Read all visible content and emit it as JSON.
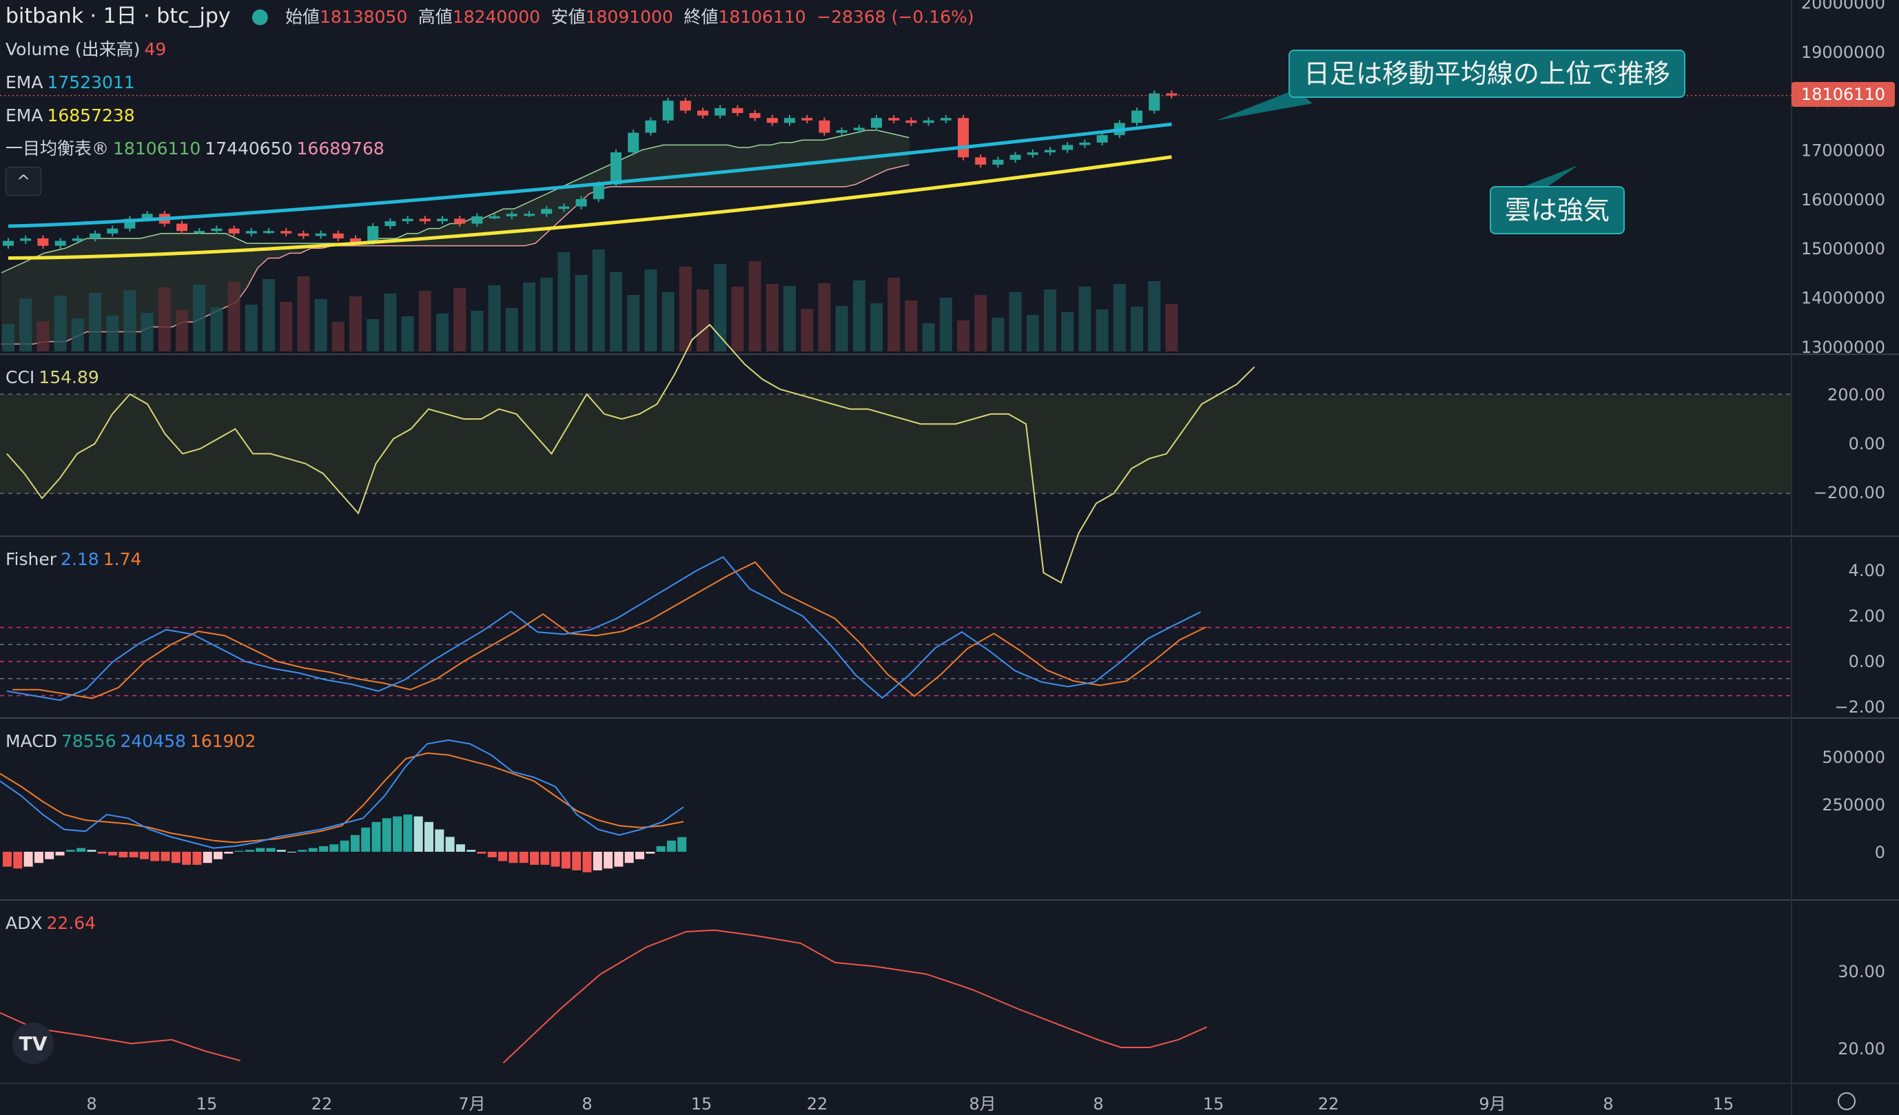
{
  "header": {
    "symbol": "bitbank · 1日 · btc_jpy",
    "open_label": "始値",
    "open": "18138050",
    "high_label": "高値",
    "high": "18240000",
    "low_label": "安値",
    "low": "18091000",
    "close_label": "終値",
    "close": "18106110",
    "change": "−28368 (−0.16%)"
  },
  "legend": {
    "volume_label": "Volume (出来高)",
    "volume": "49",
    "ema1_label": "EMA",
    "ema1": "17523011",
    "ema2_label": "EMA",
    "ema2": "16857238",
    "ichimoku_label": "一目均衡表®",
    "ich_a": "18106110",
    "ich_b": "17440650",
    "ich_c": "16689768",
    "cci_label": "CCI",
    "cci": "154.89",
    "fisher_label": "Fisher",
    "fisher_a": "2.18",
    "fisher_b": "1.74",
    "macd_label": "MACD",
    "macd_a": "78556",
    "macd_b": "240458",
    "macd_c": "161902",
    "adx_label": "ADX",
    "adx": "22.64"
  },
  "annotations": {
    "daily_trend": "日足は移動平均線の上位で推移",
    "cloud": "雲は強気"
  },
  "last_price_badge": "18106110",
  "colors": {
    "background": "#151924",
    "up": "#26a69a",
    "down": "#ef5350",
    "ema_fast": "#22b8d8",
    "ema_slow": "#f5e63b",
    "cci": "#d8d67a",
    "fisher": "#3d8ff2",
    "trigger": "#f07c2c",
    "adx": "#f0554a"
  },
  "chart_data": {
    "type": "candlestick",
    "x_axis_ticks": [
      "8",
      "15",
      "22",
      "7月",
      "8",
      "15",
      "22",
      "8月",
      "8",
      "15",
      "22",
      "9月",
      "8",
      "15"
    ],
    "price_axis_ticks": [
      "20000000",
      "19000000",
      "18000000",
      "17000000",
      "16000000",
      "15000000",
      "14000000",
      "13000000"
    ],
    "closes": [
      15150000,
      15200000,
      15050000,
      15150000,
      15200000,
      15300000,
      15400000,
      15600000,
      15700000,
      15500000,
      15350000,
      15350000,
      15400000,
      15300000,
      15350000,
      15350000,
      15300000,
      15250000,
      15300000,
      15200000,
      15100000,
      15450000,
      15550000,
      15600000,
      15550000,
      15600000,
      15500000,
      15650000,
      15650000,
      15700000,
      15700000,
      15800000,
      15850000,
      16000000,
      16300000,
      16950000,
      17350000,
      17600000,
      18000000,
      17800000,
      17700000,
      17850000,
      17750000,
      17650000,
      17550000,
      17650000,
      17600000,
      17350000,
      17400000,
      17450000,
      17650000,
      17600000,
      17550000,
      17600000,
      17650000,
      16850000,
      16700000,
      16800000,
      16900000,
      16950000,
      17000000,
      17100000,
      17150000,
      17300000,
      17550000,
      17800000,
      18150000,
      18106110
    ],
    "ema_fast": {
      "from": 15450000,
      "to": 17523011
    },
    "ema_slow": {
      "from": 14800000,
      "to": 16857238
    },
    "cci": {
      "axis_ticks": [
        "200.00",
        "0.00",
        "−200.00"
      ],
      "last": 154.89
    },
    "fisher": {
      "axis_ticks": [
        "4.00",
        "2.00",
        "0.00",
        "−2.00"
      ],
      "last": [
        2.18,
        1.74
      ]
    },
    "macd": {
      "axis_ticks": [
        "500000",
        "250000",
        "0"
      ],
      "last": [
        78556,
        240458,
        161902
      ]
    },
    "adx": {
      "axis_ticks": [
        "30.00",
        "20.00"
      ],
      "last": 22.64
    }
  }
}
